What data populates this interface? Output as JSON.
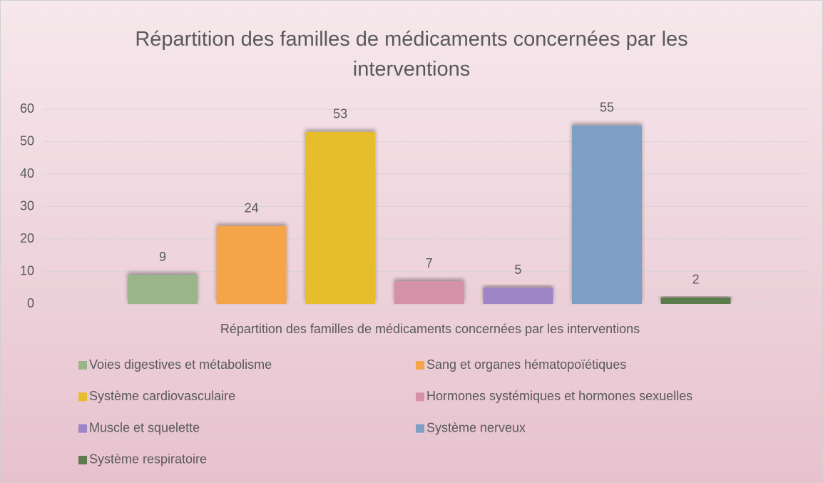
{
  "chart_data": {
    "type": "bar",
    "title": "Répartition des familles de médicaments concernées par les interventions",
    "categories": [
      "Répartition des familles de médicaments concernées par les interventions"
    ],
    "series": [
      {
        "name": "Voies digestives et métabolisme",
        "color": "#9bb58a",
        "values": [
          9
        ]
      },
      {
        "name": "Sang et organes hématopoïétiques",
        "color": "#f4a44a",
        "values": [
          24
        ]
      },
      {
        "name": "Système cardiovasculaire",
        "color": "#e6bd2b",
        "values": [
          53
        ]
      },
      {
        "name": "Hormones systémiques et hormones sexuelles",
        "color": "#d491a7",
        "values": [
          7
        ]
      },
      {
        "name": "Muscle et squelette",
        "color": "#9d84c4",
        "values": [
          5
        ]
      },
      {
        "name": "Système nerveux",
        "color": "#7f9fc4",
        "values": [
          55
        ]
      },
      {
        "name": "Système respiratoire",
        "color": "#5d7b4c",
        "values": [
          2
        ]
      }
    ],
    "ylim": [
      0,
      60
    ],
    "yticks": [
      0,
      10,
      20,
      30,
      40,
      50,
      60
    ],
    "grid": true,
    "data_labels": true,
    "legend": "bottom"
  }
}
